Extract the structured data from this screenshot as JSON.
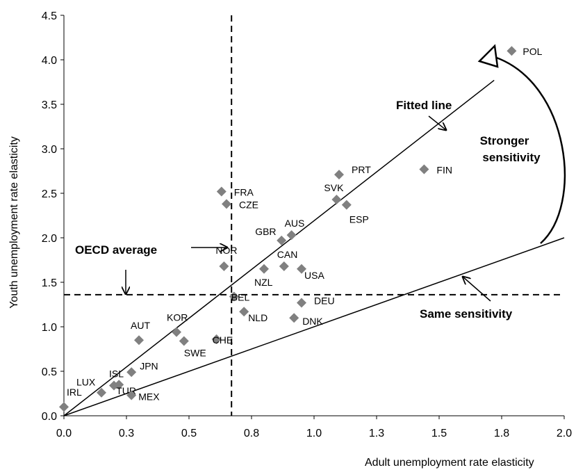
{
  "chart_data": {
    "type": "scatter",
    "xlabel": "Adult unemployment rate elasticity",
    "ylabel": "Youth unemployment rate elasticity",
    "xlim": [
      0,
      2.0
    ],
    "ylim": [
      0,
      4.5
    ],
    "x_ticks": [
      0,
      0.25,
      0.5,
      0.75,
      1.0,
      1.25,
      1.5,
      1.75,
      2.0
    ],
    "x_tick_labels": [
      "0.0",
      "0.3",
      "0.5",
      "0.8",
      "1.0",
      "1.3",
      "1.5",
      "1.8",
      "2.0"
    ],
    "y_ticks": [
      0,
      0.5,
      1.0,
      1.5,
      2.0,
      2.5,
      3.0,
      3.5,
      4.0,
      4.5
    ],
    "y_tick_labels": [
      "0.0",
      "0.5",
      "1.0",
      "1.5",
      "2.0",
      "2.5",
      "3.0",
      "3.5",
      "4.0",
      "4.5"
    ],
    "grid": false,
    "marker_color": "#808080",
    "points": [
      {
        "label": "IRL",
        "x": 0.0,
        "y": 0.1
      },
      {
        "label": "LUX",
        "x": 0.15,
        "y": 0.26
      },
      {
        "label": "ISL",
        "x": 0.2,
        "y": 0.34
      },
      {
        "label": "TUR",
        "x": 0.22,
        "y": 0.35
      },
      {
        "label": "MEX",
        "x": 0.27,
        "y": 0.23
      },
      {
        "label": "JPN",
        "x": 0.27,
        "y": 0.49
      },
      {
        "label": "AUT",
        "x": 0.3,
        "y": 0.85
      },
      {
        "label": "KOR",
        "x": 0.45,
        "y": 0.94
      },
      {
        "label": "SWE",
        "x": 0.48,
        "y": 0.84
      },
      {
        "label": "CHE",
        "x": 0.61,
        "y": 0.86
      },
      {
        "label": "FRA",
        "x": 0.63,
        "y": 2.52
      },
      {
        "label": "CZE",
        "x": 0.65,
        "y": 2.38
      },
      {
        "label": "NOR",
        "x": 0.64,
        "y": 1.68
      },
      {
        "label": "BEL",
        "x": 0.68,
        "y": 1.34
      },
      {
        "label": "NLD",
        "x": 0.72,
        "y": 1.17
      },
      {
        "label": "NZL",
        "x": 0.8,
        "y": 1.65
      },
      {
        "label": "GBR",
        "x": 0.87,
        "y": 1.97
      },
      {
        "label": "AUS",
        "x": 0.91,
        "y": 2.03
      },
      {
        "label": "CAN",
        "x": 0.88,
        "y": 1.68
      },
      {
        "label": "USA",
        "x": 0.95,
        "y": 1.65
      },
      {
        "label": "DEU",
        "x": 0.95,
        "y": 1.27
      },
      {
        "label": "DNK",
        "x": 0.92,
        "y": 1.1
      },
      {
        "label": "PRT",
        "x": 1.1,
        "y": 2.71
      },
      {
        "label": "SVK",
        "x": 1.09,
        "y": 2.43
      },
      {
        "label": "ESP",
        "x": 1.13,
        "y": 2.37
      },
      {
        "label": "FIN",
        "x": 1.44,
        "y": 2.77
      },
      {
        "label": "POL",
        "x": 1.79,
        "y": 4.1
      }
    ],
    "oecd_average": {
      "x": 0.67,
      "y": 1.36
    },
    "lines": [
      {
        "name": "Fitted line",
        "x": [
          0,
          1.72
        ],
        "y": [
          0,
          3.77
        ]
      },
      {
        "name": "Same sensitivity",
        "x": [
          0,
          2.0
        ],
        "y": [
          0,
          2.0
        ]
      }
    ],
    "annotations": {
      "fitted_line": "Fitted line",
      "same_sensitivity": "Same sensitivity",
      "oecd_average": "OECD average",
      "stronger_1": "Stronger",
      "stronger_2": "sensitivity"
    }
  }
}
